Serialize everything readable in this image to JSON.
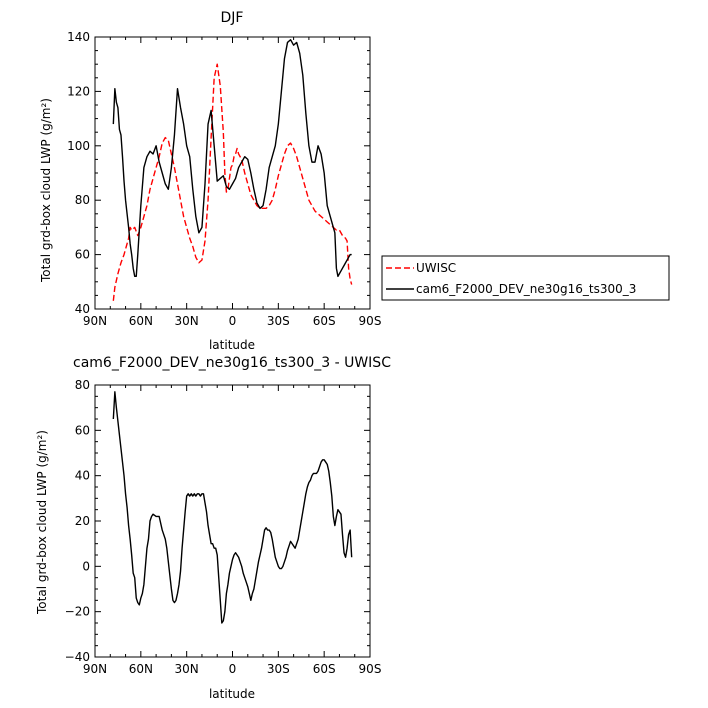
{
  "chart_data": [
    {
      "type": "line",
      "title": "DJF",
      "xlabel": "latitude",
      "ylabel": "Total grd-box cloud LWP (g/m²)",
      "xlim": [
        90,
        -90
      ],
      "ylim": [
        40,
        140
      ],
      "x_ticks": [
        90,
        60,
        30,
        0,
        -30,
        -60,
        -90
      ],
      "x_tick_labels": [
        "90N",
        "60N",
        "30N",
        "0",
        "30S",
        "60S",
        "90S"
      ],
      "y_ticks": [
        40,
        60,
        80,
        100,
        120,
        140
      ],
      "y_tick_labels": [
        "40",
        "60",
        "80",
        "100",
        "120",
        "140"
      ],
      "legend_position": "right",
      "series": [
        {
          "name": "UWISC",
          "color": "#ff0000",
          "dash": "dashed",
          "x": [
            78,
            77,
            75,
            73,
            71,
            69,
            68,
            67,
            66,
            64,
            62,
            60,
            58,
            56,
            54,
            52,
            50,
            48,
            46,
            44,
            42,
            40,
            38,
            36,
            34,
            32,
            30,
            28,
            26,
            24,
            22,
            20,
            18,
            16,
            14,
            12,
            10,
            8,
            6,
            5,
            4,
            3,
            2,
            1,
            0,
            -1,
            -2,
            -3,
            -4,
            -6,
            -8,
            -10,
            -12,
            -14,
            -16,
            -18,
            -20,
            -22,
            -24,
            -26,
            -28,
            -30,
            -32,
            -34,
            -36,
            -38,
            -40,
            -42,
            -44,
            -46,
            -48,
            -50,
            -52,
            -54,
            -56,
            -58,
            -60,
            -62,
            -64,
            -66,
            -68,
            -70,
            -72,
            -74,
            -75,
            -76,
            -77,
            -78
          ],
          "y": [
            43,
            48,
            53,
            57,
            60,
            64,
            66,
            70,
            69,
            70,
            67,
            70,
            74,
            78,
            84,
            88,
            92,
            96,
            101,
            103,
            102,
            97,
            92,
            86,
            80,
            74,
            70,
            66,
            63,
            59,
            57,
            58,
            65,
            80,
            103,
            125,
            130,
            122,
            105,
            90,
            83,
            84,
            88,
            92,
            93,
            96,
            97,
            99,
            97,
            95,
            90,
            86,
            82,
            80,
            78,
            77,
            77,
            77,
            78,
            80,
            84,
            89,
            93,
            97,
            100,
            101,
            99,
            96,
            92,
            88,
            84,
            80,
            78,
            76,
            75,
            74,
            73,
            72,
            71,
            70,
            69,
            69,
            67,
            66,
            65,
            55,
            51,
            49
          ]
        },
        {
          "name": "cam6_F2000_DEV_ne30g16_ts300_3",
          "color": "#000000",
          "dash": "solid",
          "x": [
            78,
            77,
            76,
            75,
            74,
            73,
            72,
            71,
            70,
            69,
            68,
            67,
            66,
            65,
            64,
            63,
            62,
            60,
            58,
            56,
            54,
            52,
            50,
            48,
            46,
            44,
            42,
            40,
            38,
            36,
            34,
            32,
            30,
            28,
            26,
            24,
            22,
            20,
            18,
            16,
            14,
            12,
            10,
            8,
            6,
            4,
            2,
            0,
            -2,
            -4,
            -6,
            -8,
            -10,
            -12,
            -14,
            -16,
            -18,
            -20,
            -22,
            -24,
            -26,
            -28,
            -30,
            -32,
            -34,
            -36,
            -38,
            -40,
            -42,
            -44,
            -46,
            -48,
            -50,
            -52,
            -54,
            -56,
            -58,
            -60,
            -62,
            -64,
            -66,
            -67,
            -68,
            -69,
            -70,
            -71,
            -72,
            -73,
            -74,
            -75,
            -76,
            -77,
            -78
          ],
          "y": [
            108,
            121,
            116,
            114,
            106,
            104,
            96,
            87,
            80,
            75,
            70,
            64,
            60,
            55,
            52,
            52,
            60,
            78,
            92,
            96,
            98,
            97,
            100,
            94,
            90,
            86,
            84,
            92,
            104,
            121,
            114,
            108,
            100,
            96,
            84,
            74,
            68,
            70,
            86,
            108,
            113,
            100,
            87,
            88,
            89,
            85,
            84,
            86,
            88,
            92,
            94,
            96,
            95,
            90,
            84,
            79,
            77,
            78,
            84,
            92,
            96,
            100,
            108,
            120,
            132,
            138,
            139,
            137,
            138,
            134,
            126,
            112,
            100,
            94,
            94,
            100,
            97,
            90,
            78,
            74,
            70,
            68,
            55,
            52,
            53,
            54,
            55,
            56,
            57,
            58,
            59,
            60,
            60
          ]
        }
      ]
    },
    {
      "type": "line",
      "title": "cam6_F2000_DEV_ne30g16_ts300_3 - UWISC",
      "xlabel": "latitude",
      "ylabel": "Total grd-box cloud LWP (g/m²)",
      "xlim": [
        90,
        -90
      ],
      "ylim": [
        -40,
        80
      ],
      "x_ticks": [
        90,
        60,
        30,
        0,
        -30,
        -60,
        -90
      ],
      "x_tick_labels": [
        "90N",
        "60N",
        "30N",
        "0",
        "30S",
        "60S",
        "90S"
      ],
      "y_ticks": [
        -40,
        -20,
        0,
        20,
        40,
        60,
        80
      ],
      "y_tick_labels": [
        "−40",
        "−20",
        "0",
        "20",
        "40",
        "60",
        "80"
      ],
      "series": [
        {
          "name": "",
          "color": "#000000",
          "dash": "solid",
          "x": [
            78,
            77,
            76,
            75,
            74,
            73,
            72,
            71,
            70,
            69,
            68,
            67,
            66,
            65,
            64,
            63,
            62,
            61,
            60,
            59,
            58,
            57,
            56,
            55,
            54,
            53,
            52,
            50,
            48,
            46,
            44,
            43,
            42,
            41,
            40,
            39,
            38,
            37,
            36,
            35,
            34,
            33,
            32,
            31,
            30,
            29,
            28,
            27,
            26,
            25,
            24,
            23,
            22,
            21,
            20,
            19,
            18,
            17,
            16,
            15,
            14,
            13,
            12,
            11,
            10,
            9,
            8,
            7,
            6,
            5,
            4,
            3,
            2,
            1,
            0,
            -1,
            -2,
            -3,
            -4,
            -5,
            -6,
            -7,
            -8,
            -9,
            -10,
            -11,
            -12,
            -13,
            -14,
            -15,
            -16,
            -17,
            -18,
            -19,
            -20,
            -21,
            -22,
            -23,
            -24,
            -25,
            -26,
            -27,
            -28,
            -29,
            -30,
            -31,
            -32,
            -33,
            -34,
            -35,
            -36,
            -37,
            -38,
            -39,
            -40,
            -41,
            -42,
            -43,
            -44,
            -45,
            -46,
            -47,
            -48,
            -49,
            -50,
            -51,
            -52,
            -53,
            -54,
            -55,
            -56,
            -57,
            -58,
            -59,
            -60,
            -61,
            -62,
            -63,
            -64,
            -65,
            -66,
            -67,
            -68,
            -69,
            -70,
            -71,
            -72,
            -73,
            -74,
            -75,
            -76,
            -77,
            -78
          ],
          "y": [
            65,
            77,
            70,
            64,
            58,
            52,
            46,
            40,
            32,
            26,
            18,
            12,
            5,
            -3,
            -5,
            -14,
            -16,
            -17,
            -14,
            -12,
            -8,
            0,
            8,
            12,
            20,
            22,
            23,
            22,
            22,
            16,
            12,
            8,
            2,
            -4,
            -10,
            -15,
            -16,
            -15,
            -12,
            -8,
            -2,
            8,
            16,
            24,
            31,
            32,
            31,
            32,
            31,
            32,
            31,
            32,
            32,
            31,
            32,
            32,
            28,
            24,
            18,
            14,
            10,
            10,
            8,
            8,
            5,
            -5,
            -15,
            -25,
            -24,
            -20,
            -12,
            -8,
            -3,
            0,
            3,
            5,
            6,
            5,
            4,
            2,
            0,
            -3,
            -5,
            -7,
            -9,
            -12,
            -15,
            -12,
            -10,
            -6,
            -2,
            2,
            5,
            8,
            12,
            16,
            17,
            16,
            16,
            15,
            12,
            8,
            4,
            2,
            0,
            -1,
            -1,
            0,
            2,
            4,
            7,
            9,
            11,
            10,
            9,
            8,
            10,
            12,
            16,
            20,
            24,
            28,
            32,
            35,
            37,
            38,
            40,
            41,
            41,
            41,
            42,
            44,
            46,
            47,
            47,
            46,
            45,
            42,
            37,
            31,
            22,
            18,
            22,
            25,
            24,
            23,
            14,
            6,
            4,
            8,
            14,
            16,
            4
          ]
        }
      ]
    }
  ]
}
